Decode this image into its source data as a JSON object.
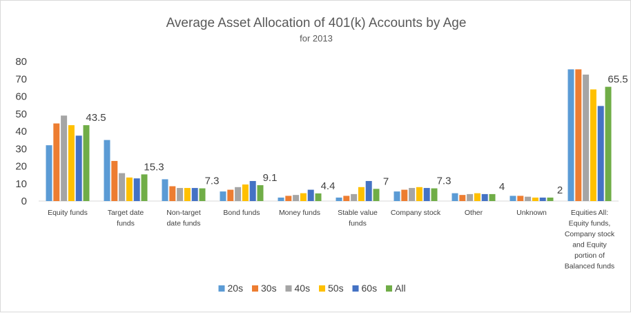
{
  "chart_data": {
    "type": "bar",
    "title": "Average Asset Allocation of 401(k) Accounts by Age",
    "subtitle": "for 2013",
    "ylim": [
      0,
      80
    ],
    "yticks": [
      "0",
      "10",
      "20",
      "30",
      "40",
      "50",
      "60",
      "70",
      "80"
    ],
    "grid": false,
    "legend_position": "bottom",
    "categories": [
      [
        "Equity funds"
      ],
      [
        "Target date",
        "funds"
      ],
      [
        "Non-target",
        "date funds"
      ],
      [
        "Bond funds"
      ],
      [
        "Money funds"
      ],
      [
        "Stable value",
        "funds"
      ],
      [
        "Company stock"
      ],
      [
        "Other"
      ],
      [
        "Unknown"
      ],
      [
        "Equities All:",
        "Equity funds,",
        "Company stock",
        "and Equity",
        "portion of",
        "Balanced funds"
      ]
    ],
    "series": [
      {
        "name": "20s",
        "color": "#5b9bd5",
        "values": [
          32,
          35,
          12.5,
          5.5,
          2,
          2,
          5.5,
          4.5,
          3,
          75.5
        ]
      },
      {
        "name": "30s",
        "color": "#ed7d31",
        "values": [
          44.5,
          23,
          8.5,
          6.5,
          3,
          3,
          6.5,
          3.5,
          3,
          75.5
        ]
      },
      {
        "name": "40s",
        "color": "#a5a5a5",
        "values": [
          49,
          16,
          7.5,
          8,
          3.5,
          4,
          7.5,
          4,
          2.5,
          72.5
        ]
      },
      {
        "name": "50s",
        "color": "#ffc000",
        "values": [
          43.5,
          13.5,
          7.5,
          9.5,
          4.5,
          8,
          8,
          4.5,
          2,
          64
        ]
      },
      {
        "name": "60s",
        "color": "#4472c4",
        "values": [
          37.5,
          13,
          7.5,
          11.5,
          6.5,
          11.5,
          7.5,
          4,
          2,
          54.5
        ]
      },
      {
        "name": "All",
        "color": "#70ad47",
        "values": [
          43.5,
          15.3,
          7.3,
          9.1,
          4.4,
          7,
          7.3,
          4,
          2,
          65.5
        ]
      }
    ],
    "data_labels": [
      "43.5",
      "15.3",
      "7.3",
      "9.1",
      "4.4",
      "7",
      "7.3",
      "4",
      "2",
      "65.5"
    ]
  }
}
